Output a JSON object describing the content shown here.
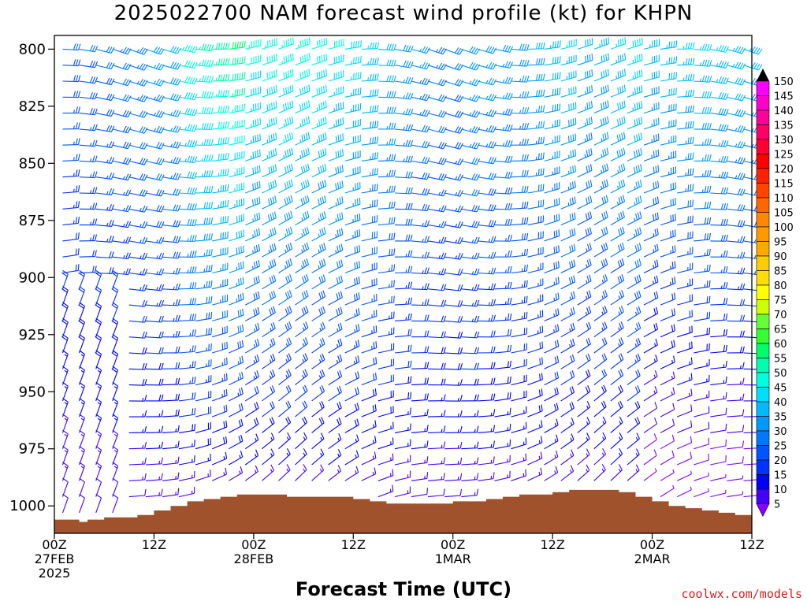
{
  "chart_data": {
    "type": "wind-barb time-height profile",
    "title": "2025022700 NAM forecast wind profile (kt) for KHPN",
    "xlabel": "Forecast Time (UTC)",
    "credit": "coolwx.com/models",
    "y_ticks": [
      800,
      825,
      850,
      875,
      900,
      925,
      950,
      975,
      1000
    ],
    "ylim": [
      1012,
      794
    ],
    "y_unit": "hPa",
    "xlim_hours": [
      0,
      84
    ],
    "x_ticks": [
      {
        "line1": "00Z",
        "line2": "27FEB",
        "line3": "2025"
      },
      {
        "line1": "12Z",
        "line2": "",
        "line3": ""
      },
      {
        "line1": "00Z",
        "line2": "28FEB",
        "line3": ""
      },
      {
        "line1": "12Z",
        "line2": "",
        "line3": ""
      },
      {
        "line1": "00Z",
        "line2": "1MAR",
        "line3": ""
      },
      {
        "line1": "12Z",
        "line2": "",
        "line3": ""
      },
      {
        "line1": "00Z",
        "line2": "2MAR",
        "line3": ""
      },
      {
        "line1": "12Z",
        "line2": "",
        "line3": ""
      }
    ],
    "x_tick_hours": [
      0,
      12,
      24,
      36,
      48,
      60,
      72,
      84
    ],
    "colorbar_levels": [
      150,
      145,
      140,
      135,
      130,
      125,
      120,
      115,
      110,
      105,
      100,
      95,
      90,
      85,
      80,
      75,
      70,
      65,
      60,
      55,
      50,
      45,
      40,
      35,
      30,
      25,
      20,
      15,
      10,
      5
    ],
    "colorbar_colors": [
      "#ff00ff",
      "#ff00cc",
      "#ff0099",
      "#ff0066",
      "#ff0033",
      "#ff0000",
      "#ff2200",
      "#ff4400",
      "#ff6600",
      "#ff8800",
      "#ff9900",
      "#ffaa00",
      "#ffcc00",
      "#ffdd00",
      "#ffff00",
      "#ccff00",
      "#66ff33",
      "#33ff33",
      "#00ff66",
      "#00ffaa",
      "#00ffdd",
      "#00ddff",
      "#00bbff",
      "#0099ff",
      "#0077ff",
      "#0055ff",
      "#0033ff",
      "#0000ff",
      "#4400ff",
      "#8800ff"
    ],
    "terrain_color": "#a0522d",
    "surface_pressure_hpa": [
      {
        "h": 0,
        "p": 1006
      },
      {
        "h": 2,
        "p": 1006
      },
      {
        "h": 3,
        "p": 1007
      },
      {
        "h": 4,
        "p": 1006
      },
      {
        "h": 6,
        "p": 1005
      },
      {
        "h": 8,
        "p": 1005
      },
      {
        "h": 10,
        "p": 1004
      },
      {
        "h": 12,
        "p": 1002
      },
      {
        "h": 14,
        "p": 1000
      },
      {
        "h": 16,
        "p": 998
      },
      {
        "h": 18,
        "p": 997
      },
      {
        "h": 20,
        "p": 996
      },
      {
        "h": 22,
        "p": 995
      },
      {
        "h": 24,
        "p": 995
      },
      {
        "h": 26,
        "p": 995
      },
      {
        "h": 28,
        "p": 996
      },
      {
        "h": 30,
        "p": 996
      },
      {
        "h": 32,
        "p": 996
      },
      {
        "h": 34,
        "p": 996
      },
      {
        "h": 36,
        "p": 997
      },
      {
        "h": 38,
        "p": 998
      },
      {
        "h": 40,
        "p": 999
      },
      {
        "h": 42,
        "p": 999
      },
      {
        "h": 44,
        "p": 999
      },
      {
        "h": 46,
        "p": 999
      },
      {
        "h": 48,
        "p": 998
      },
      {
        "h": 50,
        "p": 998
      },
      {
        "h": 52,
        "p": 997
      },
      {
        "h": 54,
        "p": 996
      },
      {
        "h": 56,
        "p": 995
      },
      {
        "h": 58,
        "p": 995
      },
      {
        "h": 60,
        "p": 994
      },
      {
        "h": 62,
        "p": 993
      },
      {
        "h": 64,
        "p": 993
      },
      {
        "h": 66,
        "p": 993
      },
      {
        "h": 68,
        "p": 994
      },
      {
        "h": 70,
        "p": 996
      },
      {
        "h": 72,
        "p": 998
      },
      {
        "h": 74,
        "p": 1000
      },
      {
        "h": 76,
        "p": 1001
      },
      {
        "h": 78,
        "p": 1002
      },
      {
        "h": 80,
        "p": 1003
      },
      {
        "h": 82,
        "p": 1004
      },
      {
        "h": 84,
        "p": 1005
      }
    ]
  }
}
